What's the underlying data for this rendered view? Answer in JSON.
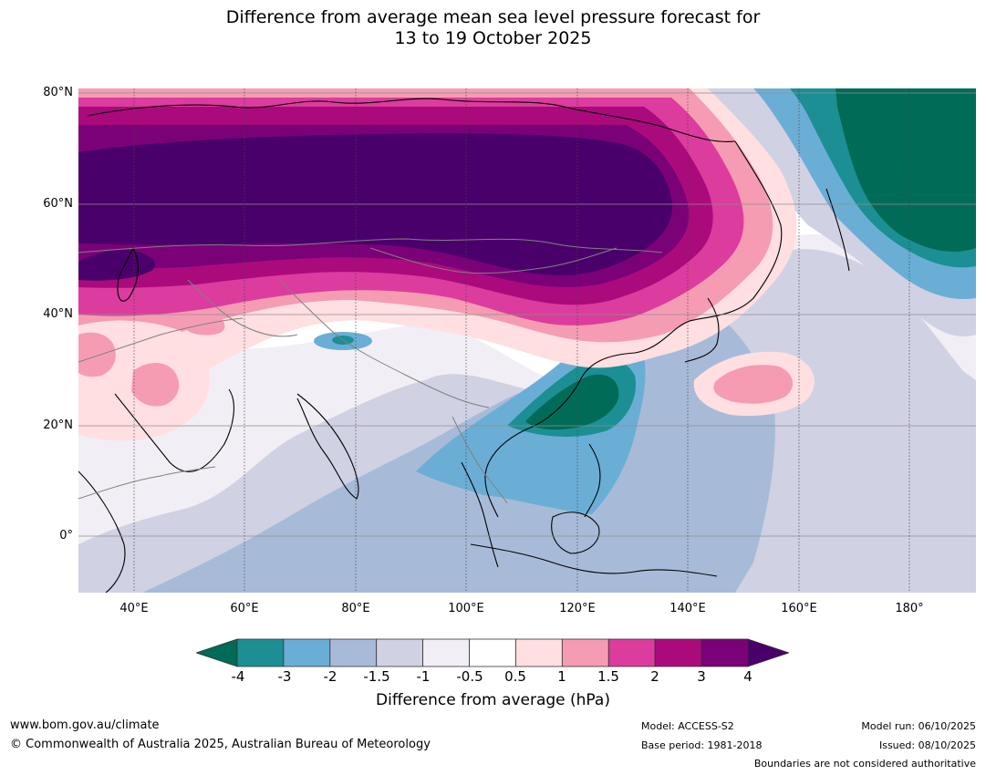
{
  "title": {
    "line1": "Difference from average mean sea level pressure forecast for",
    "line2": "13 to 19 October 2025"
  },
  "map": {
    "lat_labels": [
      "80°N",
      "60°N",
      "40°N",
      "20°N",
      "0°"
    ],
    "lon_labels": [
      "40°E",
      "60°E",
      "80°E",
      "100°E",
      "120°E",
      "140°E",
      "160°E",
      "180°"
    ],
    "lon_range": [
      30,
      192
    ],
    "lat_range": [
      -10,
      81
    ]
  },
  "colorbar": {
    "label": "Difference from average (hPa)",
    "ticks": [
      "-4",
      "-3",
      "-2",
      "-1.5",
      "-1",
      "-0.5",
      "0.5",
      "1",
      "1.5",
      "2",
      "3",
      "4"
    ],
    "colors": {
      "under": "#006b57",
      "bins": [
        "#1b8f93",
        "#6aaed6",
        "#a7bbd8",
        "#d1d1e4",
        "#f2eef5",
        "#ffffff",
        "#ffdfe0",
        "#f59cb3",
        "#dc3c9d",
        "#ab0a7d",
        "#7a0177"
      ],
      "over": "#4a006a"
    }
  },
  "footer": {
    "website": "www.bom.gov.au/climate",
    "copyright": "© Commonwealth of Australia 2025, Australian Bureau of Meteorology",
    "model": "Model: ACCESS-S2",
    "base_period": "Base period: 1981-2018",
    "model_run": "Model run: 06/10/2025",
    "issued": "Issued: 08/10/2025",
    "boundaries": "Boundaries are not considered authoritative"
  }
}
